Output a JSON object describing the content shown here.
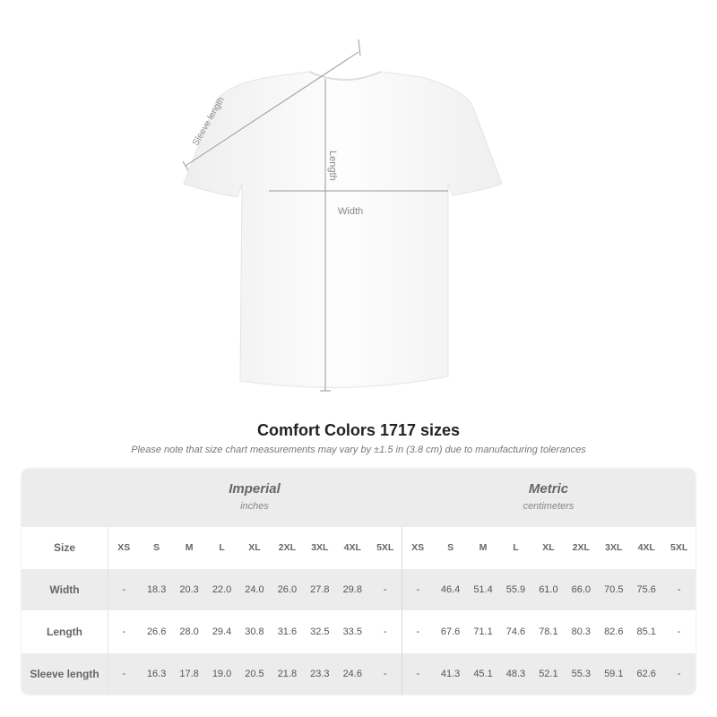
{
  "diagram": {
    "sleeve_label": "Sleeve length",
    "length_label": "Length",
    "width_label": "Width"
  },
  "title": "Comfort Colors 1717 sizes",
  "note": "Please note that size chart measurements may vary by ±1.5 in (3.8 cm) due to manufacturing tolerances",
  "table": {
    "imperial": {
      "title": "Imperial",
      "unit": "inches"
    },
    "metric": {
      "title": "Metric",
      "unit": "centimeters"
    },
    "size_label": "Size",
    "sizes": [
      "XS",
      "S",
      "M",
      "L",
      "XL",
      "2XL",
      "3XL",
      "4XL",
      "5XL"
    ],
    "rows": [
      {
        "label": "Width",
        "imperial": [
          "-",
          "18.3",
          "20.3",
          "22.0",
          "24.0",
          "26.0",
          "27.8",
          "29.8",
          "-"
        ],
        "metric": [
          "-",
          "46.4",
          "51.4",
          "55.9",
          "61.0",
          "66.0",
          "70.5",
          "75.6",
          "-"
        ]
      },
      {
        "label": "Length",
        "imperial": [
          "-",
          "26.6",
          "28.0",
          "29.4",
          "30.8",
          "31.6",
          "32.5",
          "33.5",
          "-"
        ],
        "metric": [
          "-",
          "67.6",
          "71.1",
          "74.6",
          "78.1",
          "80.3",
          "82.6",
          "85.1",
          "-"
        ]
      },
      {
        "label": "Sleeve length",
        "imperial": [
          "-",
          "16.3",
          "17.8",
          "19.0",
          "20.5",
          "21.8",
          "23.3",
          "24.6",
          "-"
        ],
        "metric": [
          "-",
          "41.3",
          "45.1",
          "48.3",
          "52.1",
          "55.3",
          "59.1",
          "62.6",
          "-"
        ]
      }
    ]
  }
}
